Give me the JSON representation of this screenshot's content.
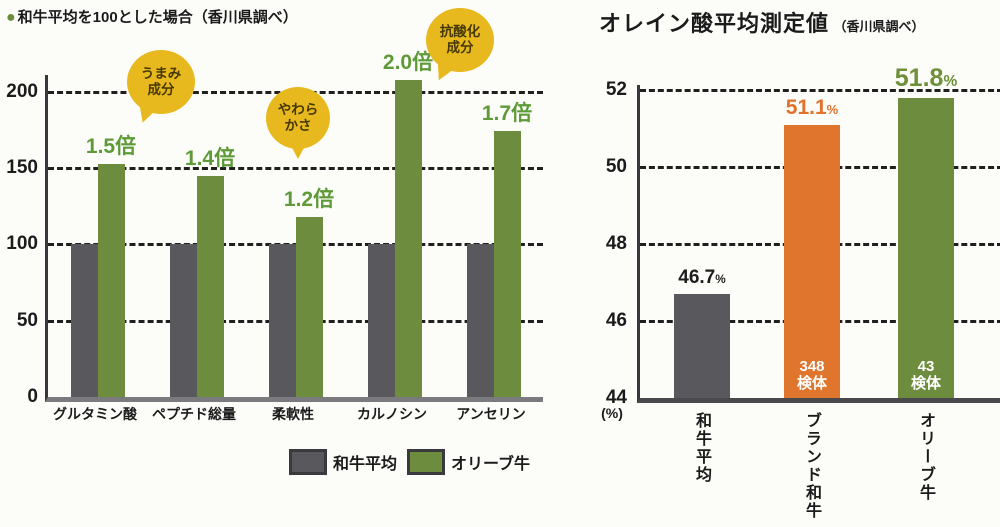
{
  "left_chart": {
    "title_bullet": "●",
    "title": "和牛平均を100とした場合（香川県調べ）",
    "bubbles": [
      "うまみ\n成分",
      "やわら\nかさ",
      "抗酸化\n成分"
    ]
  },
  "right_chart": {
    "title": "オレイン酸平均測定値",
    "subtitle": "（香川県調べ）",
    "axis_unit": "(%)"
  },
  "chart_data": [
    {
      "type": "bar",
      "title": "和牛平均を100とした場合（香川県調べ）",
      "source": "香川県調べ",
      "categories": [
        "グルタミン酸",
        "ペプチド総量",
        "柔軟性",
        "カルノシン",
        "アンセリン"
      ],
      "series": [
        {
          "name": "和牛平均",
          "color": "#59585d",
          "values": [
            100,
            100,
            100,
            100,
            100
          ]
        },
        {
          "name": "オリーブ牛",
          "color": "#6e8c3e",
          "values": [
            150,
            140,
            120,
            200,
            170
          ],
          "drawn_values": [
            153,
            145,
            118,
            208,
            174
          ],
          "ratio_labels": [
            "1.5倍",
            "1.4倍",
            "1.2倍",
            "2.0倍",
            "1.7倍"
          ]
        }
      ],
      "annotations": [
        "うまみ成分",
        "やわらかさ",
        "抗酸化成分"
      ],
      "ylim": [
        0,
        211
      ],
      "yticks": [
        0,
        50,
        100,
        150,
        200
      ],
      "grid": true,
      "legend_position": "bottom-right",
      "ratio_label_color": "#5f9a38"
    },
    {
      "type": "bar",
      "title": "オレイン酸平均測定値（香川県調べ）",
      "source": "香川県調べ",
      "categories": [
        "和牛平均",
        "ブランド和牛",
        "オリーブ牛"
      ],
      "values": [
        46.7,
        51.1,
        51.8
      ],
      "value_labels": [
        "46.7",
        "51.1",
        "51.8"
      ],
      "value_unit": "%",
      "bar_colors": [
        "#59585d",
        "#e0762e",
        "#6e8c3e"
      ],
      "label_colors": [
        "#1d1d1d",
        "#e2712a",
        "#6d9038"
      ],
      "sample_counts": [
        "",
        "348\n検体",
        "43\n検体"
      ],
      "ylim": [
        44,
        52.1
      ],
      "yticks": [
        44,
        46,
        48,
        50,
        52
      ],
      "ylabel": "(%)",
      "grid": true
    }
  ]
}
